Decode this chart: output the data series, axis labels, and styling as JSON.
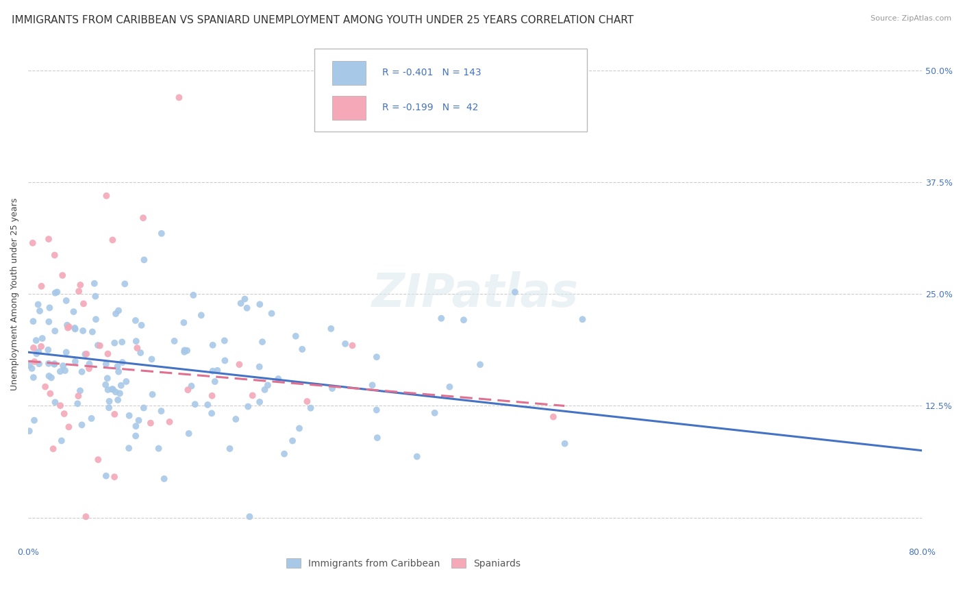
{
  "title": "IMMIGRANTS FROM CARIBBEAN VS SPANIARD UNEMPLOYMENT AMONG YOUTH UNDER 25 YEARS CORRELATION CHART",
  "source": "Source: ZipAtlas.com",
  "ylabel": "Unemployment Among Youth under 25 years",
  "ytick_labels": [
    "",
    "12.5%",
    "25.0%",
    "37.5%",
    "50.0%"
  ],
  "ytick_values": [
    0,
    0.125,
    0.25,
    0.375,
    0.5
  ],
  "xmin": 0.0,
  "xmax": 0.8,
  "ymin": -0.03,
  "ymax": 0.53,
  "watermark": "ZIPatlas",
  "legend_blue_label": "Immigrants from Caribbean",
  "legend_pink_label": "Spaniards",
  "R_blue": "-0.401",
  "N_blue": "143",
  "R_pink": "-0.199",
  "N_pink": "42",
  "blue_scatter_color": "#a8c8e8",
  "pink_scatter_color": "#f4a8b8",
  "blue_line_color": "#4472c4",
  "pink_line_color": "#e07090",
  "title_fontsize": 11,
  "axis_label_fontsize": 9,
  "tick_fontsize": 9,
  "n_blue": 143,
  "n_pink": 42,
  "grid_color": "#cccccc",
  "background_color": "#ffffff",
  "blue_line_start_y": 0.185,
  "blue_line_end_y": 0.075,
  "pink_line_start_y": 0.175,
  "pink_line_end_y": 0.125,
  "pink_line_end_x": 0.48
}
